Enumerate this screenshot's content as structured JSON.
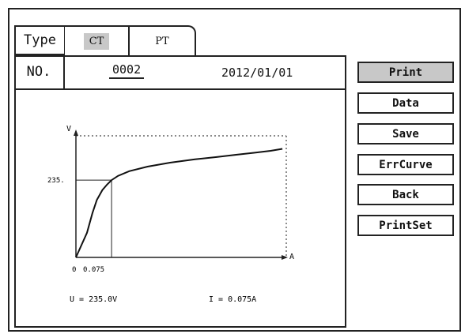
{
  "tabs": {
    "type_label": "Type",
    "items": [
      {
        "label": "CT",
        "active": true
      },
      {
        "label": "PT",
        "active": false
      }
    ]
  },
  "record": {
    "no_label": "NO.",
    "no_value": "0002",
    "date": "2012/01/01"
  },
  "buttons": [
    {
      "label": "Print",
      "active": true
    },
    {
      "label": "Data",
      "active": false
    },
    {
      "label": "Save",
      "active": false
    },
    {
      "label": "ErrCurve",
      "active": false
    },
    {
      "label": "Back",
      "active": false
    },
    {
      "label": "PrintSet",
      "active": false
    }
  ],
  "chart_data": {
    "type": "line",
    "ylabel": "V",
    "xlabel": "A",
    "y_tick_label": "235.",
    "x_tick_labels": [
      "0",
      "0.075"
    ],
    "marker_point": {
      "x": 0.075,
      "y": 235.0
    },
    "grid": false,
    "series": [
      {
        "x": [
          0,
          0.01,
          0.02,
          0.03,
          0.045,
          0.06,
          0.075,
          0.1,
          0.15,
          0.25,
          0.4,
          0.6,
          0.8,
          1.0,
          1.2,
          1.4,
          1.55
        ],
        "values": [
          0,
          75,
          135,
          175,
          205,
          222,
          235,
          248,
          262,
          276,
          288,
          298,
          305,
          312,
          318,
          324,
          330
        ]
      }
    ]
  },
  "readout": {
    "voltage": "U = 235.0V",
    "current": "I = 0.075A"
  },
  "colors": {
    "frame": "#222222",
    "highlight": "#c8c8c8",
    "background": "#ffffff"
  }
}
